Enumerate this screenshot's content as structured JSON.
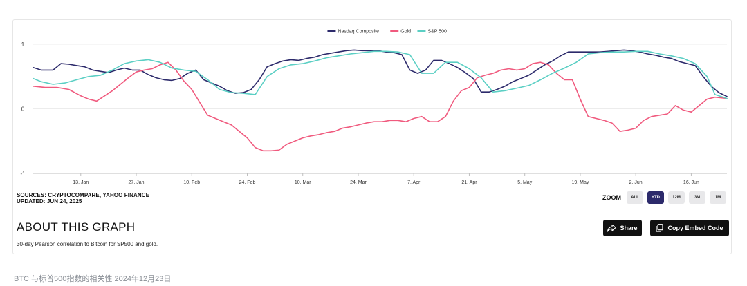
{
  "chart_data": {
    "type": "line",
    "title": "",
    "xlabel": "",
    "ylabel": "",
    "ylim": [
      -1,
      1
    ],
    "y_ticks": [
      "1",
      "0",
      "-1"
    ],
    "y_tick_values": [
      1,
      0,
      -1
    ],
    "x_tick_labels": [
      "13. Jan",
      "27. Jan",
      "10. Feb",
      "24. Feb",
      "10. Mar",
      "24. Mar",
      "7. Apr",
      "21. Apr",
      "5. May",
      "19. May",
      "2. Jun",
      "16. Jun"
    ],
    "x_tick_days": [
      12,
      26,
      40,
      54,
      68,
      82,
      96,
      110,
      124,
      138,
      152,
      166
    ],
    "x_range_days": [
      0,
      175
    ],
    "legend_position": "top-center",
    "series": [
      {
        "name": "Nasdaq Composite",
        "color": "#2c2a6b",
        "x": [
          0,
          2,
          5,
          7,
          9,
          11,
          13,
          15,
          17,
          19,
          21,
          23,
          25,
          27,
          29,
          31,
          33,
          35,
          37,
          39,
          41,
          43,
          45,
          47,
          49,
          51,
          53,
          55,
          57,
          59,
          61,
          63,
          65,
          67,
          69,
          71,
          73,
          75,
          77,
          79,
          81,
          83,
          85,
          87,
          89,
          91,
          93,
          95,
          97,
          99,
          101,
          103,
          105,
          107,
          109,
          111,
          113,
          115,
          117,
          119,
          121,
          123,
          125,
          127,
          129,
          131,
          133,
          135,
          137,
          139,
          141,
          143,
          145,
          147,
          149,
          151,
          153,
          155,
          157,
          159,
          161,
          163,
          165,
          167,
          169,
          171,
          173,
          175
        ],
        "values": [
          0.64,
          0.6,
          0.6,
          0.7,
          0.69,
          0.67,
          0.65,
          0.6,
          0.58,
          0.56,
          0.6,
          0.63,
          0.6,
          0.6,
          0.53,
          0.48,
          0.45,
          0.44,
          0.47,
          0.55,
          0.6,
          0.45,
          0.4,
          0.35,
          0.28,
          0.24,
          0.25,
          0.3,
          0.45,
          0.65,
          0.7,
          0.74,
          0.76,
          0.75,
          0.78,
          0.8,
          0.84,
          0.86,
          0.88,
          0.9,
          0.91,
          0.9,
          0.9,
          0.9,
          0.88,
          0.87,
          0.84,
          0.6,
          0.55,
          0.6,
          0.75,
          0.75,
          0.7,
          0.64,
          0.56,
          0.47,
          0.26,
          0.26,
          0.3,
          0.35,
          0.42,
          0.47,
          0.52,
          0.6,
          0.68,
          0.74,
          0.82,
          0.88,
          0.88,
          0.88,
          0.88,
          0.88,
          0.89,
          0.9,
          0.91,
          0.9,
          0.88,
          0.85,
          0.83,
          0.8,
          0.78,
          0.73,
          0.7,
          0.67,
          0.5,
          0.35,
          0.25,
          0.19
        ]
      },
      {
        "name": "Gold",
        "color": "#f05a7e",
        "x": [
          0,
          3,
          6,
          9,
          12,
          14,
          16,
          18,
          20,
          22,
          24,
          26,
          28,
          30,
          32,
          34,
          36,
          38,
          40,
          42,
          44,
          46,
          48,
          50,
          52,
          54,
          56,
          58,
          60,
          62,
          64,
          66,
          68,
          70,
          72,
          74,
          76,
          78,
          80,
          82,
          84,
          86,
          88,
          90,
          92,
          94,
          96,
          98,
          100,
          102,
          104,
          106,
          108,
          110,
          112,
          114,
          116,
          118,
          120,
          122,
          124,
          126,
          128,
          130,
          132,
          134,
          136,
          138,
          140,
          142,
          144,
          146,
          148,
          150,
          152,
          154,
          156,
          158,
          160,
          162,
          164,
          166,
          168,
          170,
          172,
          175
        ],
        "values": [
          0.35,
          0.33,
          0.33,
          0.3,
          0.2,
          0.15,
          0.12,
          0.2,
          0.28,
          0.38,
          0.48,
          0.57,
          0.6,
          0.62,
          0.68,
          0.72,
          0.6,
          0.43,
          0.3,
          0.1,
          -0.1,
          -0.15,
          -0.2,
          -0.25,
          -0.35,
          -0.45,
          -0.6,
          -0.65,
          -0.65,
          -0.64,
          -0.55,
          -0.5,
          -0.45,
          -0.42,
          -0.4,
          -0.37,
          -0.35,
          -0.3,
          -0.28,
          -0.25,
          -0.22,
          -0.2,
          -0.2,
          -0.18,
          -0.18,
          -0.2,
          -0.15,
          -0.12,
          -0.2,
          -0.2,
          -0.12,
          0.12,
          0.28,
          0.33,
          0.48,
          0.52,
          0.55,
          0.6,
          0.62,
          0.6,
          0.62,
          0.7,
          0.72,
          0.68,
          0.55,
          0.45,
          0.45,
          0.15,
          -0.12,
          -0.15,
          -0.18,
          -0.22,
          -0.35,
          -0.33,
          -0.3,
          -0.18,
          -0.12,
          -0.1,
          -0.08,
          0.05,
          -0.02,
          -0.05,
          0.05,
          0.15,
          0.18,
          0.16
        ]
      },
      {
        "name": "S&P 500",
        "color": "#5bcfc4",
        "x": [
          0,
          2,
          5,
          8,
          11,
          14,
          17,
          20,
          23,
          26,
          29,
          32,
          35,
          38,
          41,
          44,
          47,
          50,
          53,
          56,
          59,
          62,
          65,
          68,
          71,
          74,
          77,
          80,
          83,
          86,
          89,
          92,
          95,
          98,
          101,
          104,
          107,
          110,
          113,
          116,
          119,
          122,
          125,
          128,
          131,
          134,
          137,
          140,
          143,
          146,
          149,
          152,
          155,
          158,
          161,
          164,
          167,
          170,
          172,
          175
        ],
        "values": [
          0.47,
          0.42,
          0.38,
          0.4,
          0.45,
          0.5,
          0.52,
          0.6,
          0.7,
          0.74,
          0.76,
          0.72,
          0.63,
          0.6,
          0.58,
          0.45,
          0.3,
          0.25,
          0.24,
          0.22,
          0.5,
          0.62,
          0.68,
          0.7,
          0.74,
          0.79,
          0.82,
          0.85,
          0.87,
          0.89,
          0.89,
          0.88,
          0.84,
          0.55,
          0.55,
          0.72,
          0.72,
          0.62,
          0.48,
          0.26,
          0.28,
          0.32,
          0.36,
          0.45,
          0.55,
          0.63,
          0.72,
          0.85,
          0.87,
          0.88,
          0.88,
          0.89,
          0.89,
          0.85,
          0.82,
          0.78,
          0.7,
          0.5,
          0.22,
          0.16
        ]
      }
    ]
  },
  "sources": {
    "prefix": "SOURCES: ",
    "link1": "CRYPTOCOMPARE",
    "separator": ", ",
    "link2": "YAHOO FINANCE",
    "updated": "UPDATED: JUN 24, 2025"
  },
  "zoom": {
    "label": "ZOOM",
    "options": [
      "ALL",
      "YTD",
      "12M",
      "3M",
      "1M"
    ],
    "active": "YTD"
  },
  "about": {
    "title": "ABOUT THIS GRAPH",
    "description": "30-day Pearson correlation to Bitcoin for SP500 and gold."
  },
  "actions": {
    "share": "Share",
    "embed": "Copy Embed Code"
  },
  "caption": "BTC 与标普500指数的相关性 2024年12月23日"
}
